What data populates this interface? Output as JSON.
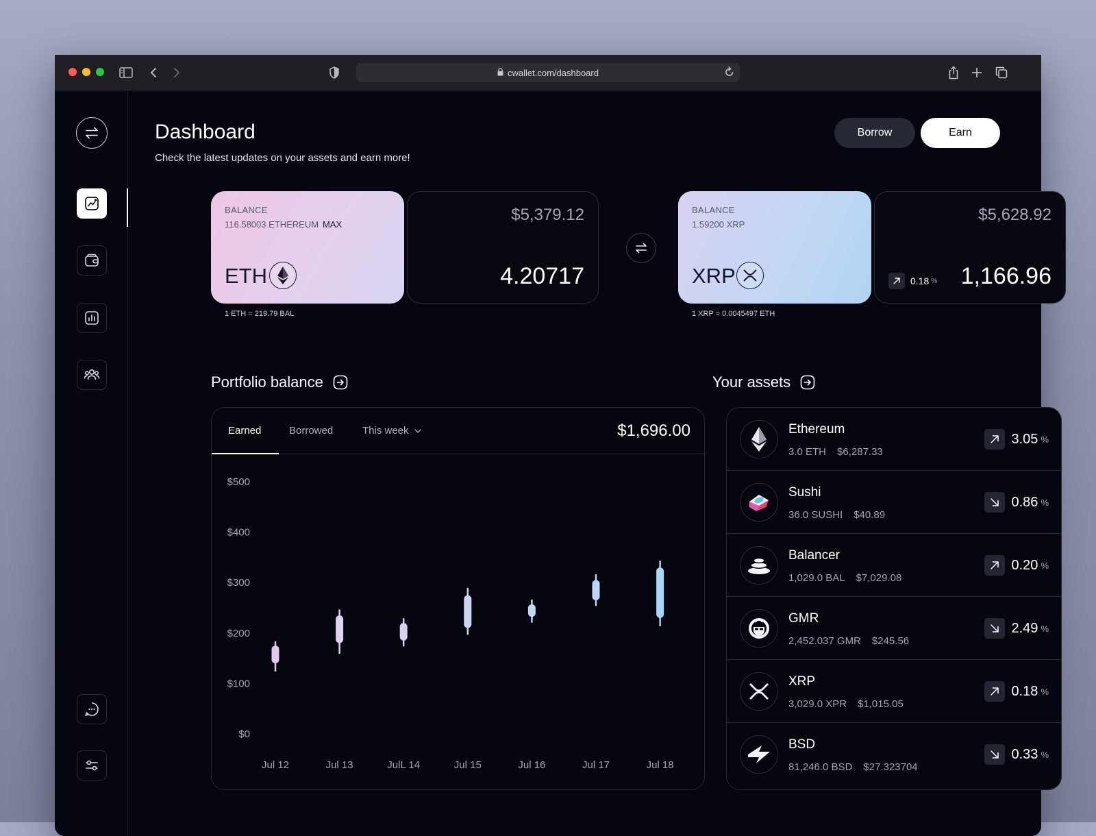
{
  "browser": {
    "url": "cwallet.com/dashboard"
  },
  "header": {
    "title": "Dashboard",
    "subtitle": "Check the latest updates on your assets and earn more!",
    "borrow_label": "Borrow",
    "earn_label": "Earn"
  },
  "sidebar": {
    "items": [
      {
        "icon": "swap-icon"
      },
      {
        "icon": "chart-line-icon",
        "active": true
      },
      {
        "icon": "wallet-icon"
      },
      {
        "icon": "bar-chart-icon"
      },
      {
        "icon": "users-icon"
      },
      {
        "icon": "chat-icon"
      },
      {
        "icon": "settings-sliders-icon"
      }
    ]
  },
  "swap": {
    "from": {
      "balance_label": "BALANCE",
      "balance_amount": "116.58003 ETHEREUM",
      "max_label": "MAX",
      "ticker": "ETH",
      "rate": "1 ETH = 219.79 BAL",
      "usd_value": "$5,379.12",
      "quantity": "4.20717"
    },
    "to": {
      "balance_label": "BALANCE",
      "balance_amount": "1.59200 XRP",
      "ticker": "XRP",
      "rate": "1 XRP = 0.0045497 ETH",
      "usd_value": "$5,628.92",
      "quantity": "1,166.96",
      "change": "0.18",
      "change_unit": "%"
    }
  },
  "portfolio": {
    "title": "Portfolio balance",
    "tabs": [
      "Earned",
      "Borrowed",
      "This week"
    ],
    "total": "$1,696.00"
  },
  "chart_data": {
    "type": "candlestick",
    "categories": [
      "Jul 12",
      "Jul 13",
      "JulL 14",
      "Jul 15",
      "Jul 16",
      "Jul 17",
      "Jul 18"
    ],
    "y_ticks": [
      "$500",
      "$400",
      "$300",
      "$200",
      "$100",
      "$0"
    ],
    "ylim": [
      0,
      500
    ],
    "candles": [
      {
        "low": 125,
        "open": 140,
        "close": 175,
        "high": 182,
        "color": "#e6c9ef"
      },
      {
        "low": 160,
        "open": 180,
        "close": 235,
        "high": 245,
        "color": "#ded2f3"
      },
      {
        "low": 175,
        "open": 185,
        "close": 220,
        "high": 228,
        "color": "#d6d3f3"
      },
      {
        "low": 198,
        "open": 210,
        "close": 275,
        "high": 288,
        "color": "#cdd4f5"
      },
      {
        "low": 222,
        "open": 232,
        "close": 257,
        "high": 265,
        "color": "#c3d6f6"
      },
      {
        "low": 255,
        "open": 265,
        "close": 305,
        "high": 315,
        "color": "#b9d7f6"
      },
      {
        "low": 215,
        "open": 230,
        "close": 330,
        "high": 342,
        "color": "#a9d5f6"
      }
    ]
  },
  "assets": {
    "title": "Your assets",
    "items": [
      {
        "name": "Ethereum",
        "amount": "3.0 ETH",
        "value": "$6,287.33",
        "change": "3.05",
        "direction": "up",
        "icon": "ethereum-icon"
      },
      {
        "name": "Sushi",
        "amount": "36.0 SUSHI",
        "value": "$40.89",
        "change": "0.86",
        "direction": "down",
        "icon": "sushi-icon"
      },
      {
        "name": "Balancer",
        "amount": "1,029.0 BAL",
        "value": "$7,029.08",
        "change": "0.20",
        "direction": "up",
        "icon": "balancer-icon"
      },
      {
        "name": "GMR",
        "amount": "2,452.037 GMR",
        "value": "$245.56",
        "change": "2.49",
        "direction": "down",
        "icon": "gmr-icon"
      },
      {
        "name": "XRP",
        "amount": "3,029.0 XPR",
        "value": "$1,015.05",
        "change": "0.18",
        "direction": "up",
        "icon": "xrp-icon"
      },
      {
        "name": "BSD",
        "amount": "81,246.0 BSD",
        "value": "$27.323704",
        "change": "0.33",
        "direction": "down",
        "icon": "bsd-icon"
      }
    ],
    "unit": "%"
  }
}
